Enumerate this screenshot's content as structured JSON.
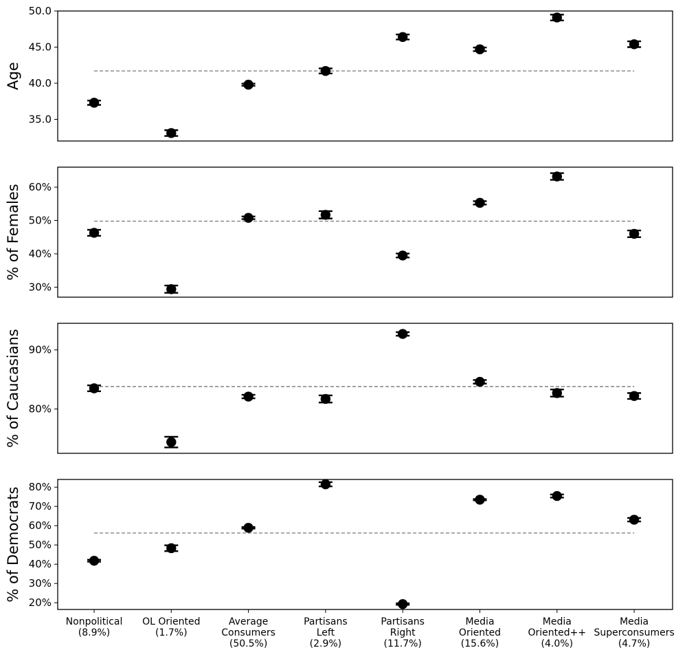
{
  "chart_data": [
    {
      "type": "scatter",
      "ylabel": "Age",
      "ylim": [
        32,
        50
      ],
      "yticks": [
        35,
        40,
        45,
        50
      ],
      "yticklabels": [
        "35.0",
        "40.0",
        "45.0",
        "50.0"
      ],
      "reference": 41.7,
      "points": [
        {
          "y": 37.3,
          "err": 0.3
        },
        {
          "y": 33.1,
          "err": 0.4
        },
        {
          "y": 39.8,
          "err": 0.15
        },
        {
          "y": 41.7,
          "err": 0.35
        },
        {
          "y": 46.4,
          "err": 0.35
        },
        {
          "y": 44.7,
          "err": 0.25
        },
        {
          "y": 49.1,
          "err": 0.4
        },
        {
          "y": 45.4,
          "err": 0.4
        }
      ]
    },
    {
      "type": "scatter",
      "ylabel": "% of Females",
      "ylim": [
        27,
        66
      ],
      "yticks": [
        30,
        40,
        50,
        60
      ],
      "yticklabels": [
        "30%",
        "40%",
        "50%",
        "60%"
      ],
      "reference": 49.8,
      "points": [
        {
          "y": 46.3,
          "err": 0.9
        },
        {
          "y": 29.4,
          "err": 1.1
        },
        {
          "y": 50.8,
          "err": 0.4
        },
        {
          "y": 51.7,
          "err": 1.1
        },
        {
          "y": 39.5,
          "err": 0.6
        },
        {
          "y": 55.3,
          "err": 0.5
        },
        {
          "y": 63.2,
          "err": 1.0
        },
        {
          "y": 46.0,
          "err": 1.0
        }
      ]
    },
    {
      "type": "scatter",
      "ylabel": "% of Caucasians",
      "ylim": [
        72.5,
        94.5
      ],
      "yticks": [
        80,
        90
      ],
      "yticklabels": [
        "80%",
        "90%"
      ],
      "reference": 83.8,
      "points": [
        {
          "y": 83.5,
          "err": 0.5
        },
        {
          "y": 74.4,
          "err": 0.9
        },
        {
          "y": 82.1,
          "err": 0.3
        },
        {
          "y": 81.7,
          "err": 0.6
        },
        {
          "y": 92.7,
          "err": 0.3
        },
        {
          "y": 84.6,
          "err": 0.3
        },
        {
          "y": 82.7,
          "err": 0.6
        },
        {
          "y": 82.2,
          "err": 0.5
        }
      ]
    },
    {
      "type": "scatter",
      "ylabel": "% of Democrats",
      "ylim": [
        16.5,
        84
      ],
      "yticks": [
        20,
        30,
        40,
        50,
        60,
        70,
        80
      ],
      "yticklabels": [
        "20%",
        "30%",
        "40%",
        "50%",
        "60%",
        "70%",
        "80%"
      ],
      "reference": 56.2,
      "points": [
        {
          "y": 41.8,
          "err": 0.5
        },
        {
          "y": 48.3,
          "err": 1.5
        },
        {
          "y": 58.9,
          "err": 0.4
        },
        {
          "y": 81.5,
          "err": 1.1
        },
        {
          "y": 19.3,
          "err": 0.4
        },
        {
          "y": 73.5,
          "err": 0.3
        },
        {
          "y": 75.4,
          "err": 0.8
        },
        {
          "y": 63.1,
          "err": 0.9
        }
      ]
    }
  ],
  "categories": [
    [
      "Nonpolitical",
      "(8.9%)"
    ],
    [
      "OL Oriented",
      "(1.7%)"
    ],
    [
      "Average",
      "Consumers",
      "(50.5%)"
    ],
    [
      "Partisans",
      "Left",
      "(2.9%)"
    ],
    [
      "Partisans",
      "Right",
      "(11.7%)"
    ],
    [
      "Media",
      "Oriented",
      "(15.6%)"
    ],
    [
      "Media",
      "Oriented++",
      "(4.0%)"
    ],
    [
      "Media",
      "Superconsumers",
      "(4.7%)"
    ]
  ],
  "style": {
    "marker_color": "#000000",
    "reference_line_color": "#777777",
    "axes_color": "#000000"
  }
}
